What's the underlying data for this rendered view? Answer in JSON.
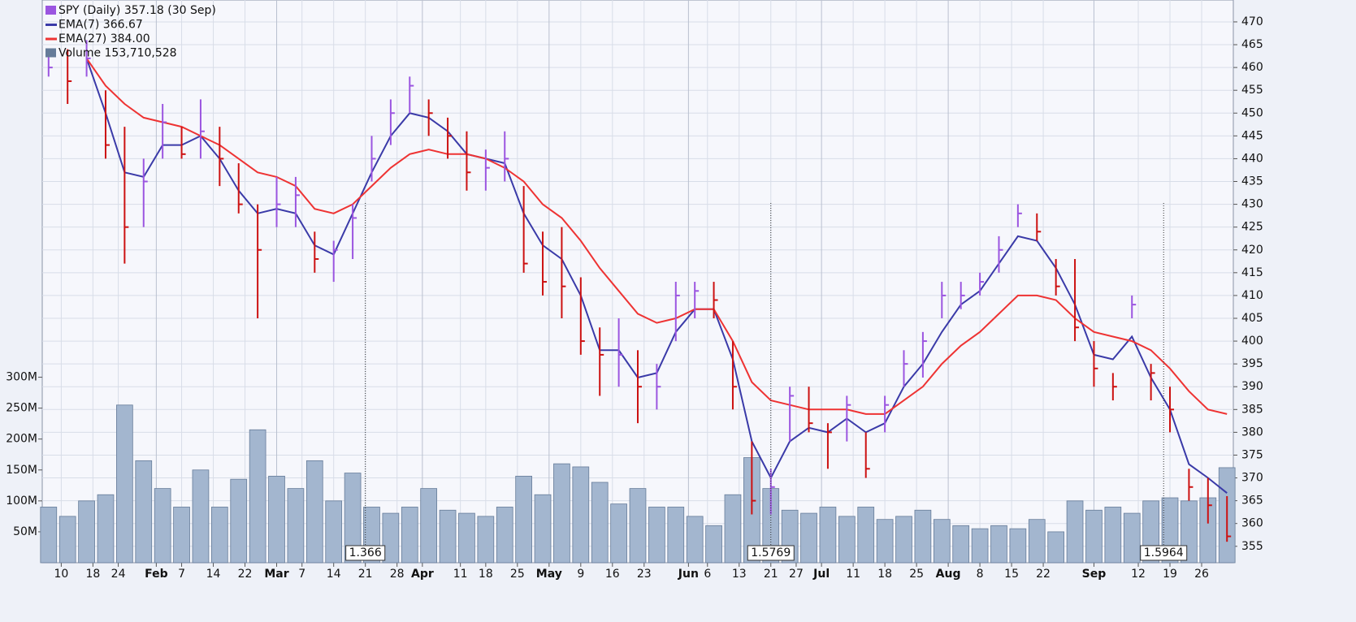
{
  "chart_data": {
    "type": "ohlc",
    "x": [
      -2,
      1,
      4,
      7,
      10,
      13,
      16,
      19,
      22,
      25,
      28,
      31,
      34,
      37,
      40,
      43,
      46,
      49,
      52,
      55,
      58,
      61,
      64,
      67,
      70,
      73,
      76,
      79,
      82,
      85,
      88,
      91,
      94,
      97,
      100,
      103,
      106,
      109,
      112,
      115,
      118,
      121,
      124,
      127,
      130,
      133,
      136,
      139,
      142,
      145,
      148,
      151,
      154,
      157,
      160,
      163,
      166,
      169,
      172,
      175,
      178,
      181,
      184
    ],
    "xlim": [
      -3,
      185
    ],
    "xticks": [
      {
        "value": 0,
        "label": "10"
      },
      {
        "value": 5,
        "label": "18"
      },
      {
        "value": 9,
        "label": "24"
      },
      {
        "value": 15,
        "label": "Feb"
      },
      {
        "value": 19,
        "label": "7"
      },
      {
        "value": 24,
        "label": "14"
      },
      {
        "value": 29,
        "label": "22"
      },
      {
        "value": 34,
        "label": "Mar"
      },
      {
        "value": 38,
        "label": "7"
      },
      {
        "value": 43,
        "label": "14"
      },
      {
        "value": 48,
        "label": "21"
      },
      {
        "value": 53,
        "label": "28"
      },
      {
        "value": 57,
        "label": "Apr"
      },
      {
        "value": 63,
        "label": "11"
      },
      {
        "value": 67,
        "label": "18"
      },
      {
        "value": 72,
        "label": "25"
      },
      {
        "value": 77,
        "label": "May"
      },
      {
        "value": 82,
        "label": "9"
      },
      {
        "value": 87,
        "label": "16"
      },
      {
        "value": 92,
        "label": "23"
      },
      {
        "value": 99,
        "label": "Jun"
      },
      {
        "value": 102,
        "label": "6"
      },
      {
        "value": 107,
        "label": "13"
      },
      {
        "value": 112,
        "label": "21"
      },
      {
        "value": 116,
        "label": "27"
      },
      {
        "value": 120,
        "label": "Jul"
      },
      {
        "value": 125,
        "label": "11"
      },
      {
        "value": 130,
        "label": "18"
      },
      {
        "value": 135,
        "label": "25"
      },
      {
        "value": 140,
        "label": "Aug"
      },
      {
        "value": 145,
        "label": "8"
      },
      {
        "value": 150,
        "label": "15"
      },
      {
        "value": 155,
        "label": "22"
      },
      {
        "value": 163,
        "label": "Sep"
      },
      {
        "value": 170,
        "label": "12"
      },
      {
        "value": 175,
        "label": "19"
      },
      {
        "value": 180,
        "label": "26"
      }
    ],
    "month_ticks": [
      "Feb",
      "Mar",
      "Apr",
      "May",
      "Jun",
      "Jul",
      "Aug",
      "Sep"
    ],
    "ylim": [
      351.4,
      474.8
    ],
    "yticks": [
      355,
      360,
      365,
      370,
      375,
      380,
      385,
      390,
      395,
      400,
      405,
      410,
      415,
      420,
      425,
      430,
      435,
      440,
      445,
      450,
      455,
      460,
      465,
      470
    ],
    "y2lim": [
      0,
      910000000
    ],
    "y2ticks": [
      {
        "value": 50000000,
        "label": "50M"
      },
      {
        "value": 100000000,
        "label": "100M"
      },
      {
        "value": 150000000,
        "label": "150M"
      },
      {
        "value": 200000000,
        "label": "200M"
      },
      {
        "value": 250000000,
        "label": "250M"
      },
      {
        "value": 300000000,
        "label": "300M"
      }
    ],
    "grid": true,
    "legend": "top-left",
    "series": [
      {
        "name": "SPY (Daily) 357.18 (30 Sep)",
        "type": "ohlc",
        "up_color": "#9b55e0",
        "down_color": "#cc1111",
        "high": [
          463,
          464,
          466,
          455,
          447,
          440,
          452,
          447,
          453,
          447,
          439,
          430,
          436,
          436,
          424,
          422,
          430,
          445,
          453,
          458,
          453,
          449,
          446,
          442,
          446,
          434,
          424,
          425,
          414,
          403,
          405,
          398,
          395,
          413,
          413,
          413,
          400,
          378,
          372,
          390,
          390,
          382,
          388,
          380,
          388,
          398,
          402,
          413,
          413,
          415,
          423,
          430,
          428,
          418,
          418,
          400,
          393,
          410,
          395,
          390,
          372,
          370,
          366
        ],
        "low": [
          458,
          452,
          458,
          440,
          417,
          425,
          440,
          440,
          440,
          434,
          428,
          405,
          425,
          425,
          415,
          413,
          418,
          435,
          443,
          450,
          445,
          440,
          433,
          433,
          435,
          415,
          410,
          405,
          397,
          388,
          390,
          382,
          385,
          400,
          405,
          405,
          385,
          362,
          362,
          378,
          380,
          372,
          378,
          370,
          380,
          390,
          392,
          405,
          407,
          410,
          415,
          425,
          422,
          410,
          400,
          390,
          387,
          405,
          387,
          380,
          365,
          360,
          356
        ],
        "close": [
          460,
          457,
          462,
          443,
          425,
          435,
          448,
          441,
          446,
          440,
          430,
          420,
          430,
          432,
          418,
          420,
          427,
          440,
          450,
          456,
          450,
          445,
          437,
          438,
          440,
          417,
          413,
          412,
          400,
          397,
          397,
          390,
          390,
          410,
          411,
          409,
          390,
          365,
          368,
          388,
          382,
          380,
          386,
          372,
          386,
          395,
          400,
          410,
          410,
          413,
          420,
          428,
          424,
          412,
          403,
          394,
          390,
          408,
          393,
          385,
          368,
          364,
          357.18
        ]
      },
      {
        "name": "EMA(7) 366.67",
        "type": "line",
        "color": "#3a3aa8",
        "values": [
          null,
          null,
          462,
          450,
          437,
          436,
          443,
          443,
          445,
          440,
          433,
          428,
          429,
          428,
          421,
          419,
          428,
          437,
          445,
          450,
          449,
          446,
          441,
          440,
          439,
          428,
          421,
          418,
          410,
          398,
          398,
          392,
          393,
          402,
          407,
          407,
          396,
          378,
          370,
          378,
          381,
          380,
          383,
          380,
          382,
          390,
          395,
          402,
          408,
          411,
          417,
          423,
          422,
          416,
          408,
          397,
          396,
          401,
          392,
          385,
          373,
          370,
          366.67
        ]
      },
      {
        "name": "EMA(27) 384.00",
        "type": "line",
        "color": "#ee3333",
        "values": [
          null,
          null,
          462,
          456,
          452,
          449,
          448,
          447,
          445,
          443,
          440,
          437,
          436,
          434,
          429,
          428,
          430,
          434,
          438,
          441,
          442,
          441,
          441,
          440,
          438,
          435,
          430,
          427,
          422,
          416,
          411,
          406,
          404,
          405,
          407,
          407,
          400,
          391,
          387,
          386,
          385,
          385,
          385,
          384,
          384,
          387,
          390,
          395,
          399,
          402,
          406,
          410,
          410,
          409,
          405,
          402,
          401,
          400,
          398,
          394,
          389,
          385,
          384.0
        ]
      },
      {
        "name": "Volume 153,710,528",
        "type": "bar",
        "axis": "y2",
        "color": "#a3b6cf",
        "edge_color": "#667c99",
        "values": [
          90000000,
          75000000,
          100000000,
          110000000,
          255000000,
          165000000,
          120000000,
          90000000,
          150000000,
          90000000,
          135000000,
          215000000,
          140000000,
          120000000,
          165000000,
          100000000,
          145000000,
          90000000,
          80000000,
          90000000,
          120000000,
          85000000,
          80000000,
          75000000,
          90000000,
          140000000,
          110000000,
          160000000,
          155000000,
          130000000,
          95000000,
          120000000,
          90000000,
          90000000,
          75000000,
          60000000,
          110000000,
          170000000,
          120000000,
          85000000,
          80000000,
          90000000,
          75000000,
          90000000,
          70000000,
          75000000,
          85000000,
          70000000,
          60000000,
          55000000,
          60000000,
          55000000,
          70000000,
          50000000,
          100000000,
          85000000,
          90000000,
          80000000,
          100000000,
          105000000,
          100000000,
          105000000,
          153710528
        ]
      }
    ],
    "annotations": [
      {
        "x": 48,
        "text": "1.366"
      },
      {
        "x": 112,
        "text": "1.5769"
      },
      {
        "x": 174,
        "text": "1.5964"
      }
    ]
  }
}
